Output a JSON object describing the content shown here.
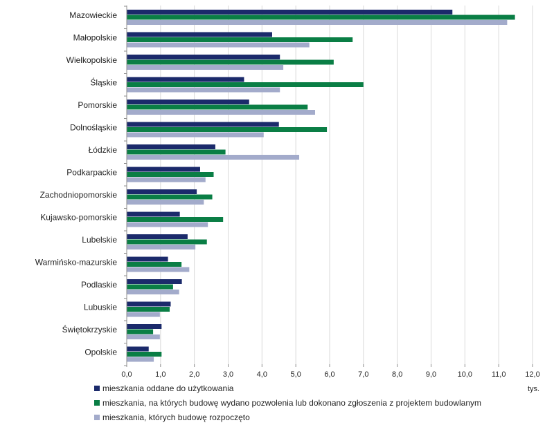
{
  "chart_data": {
    "type": "bar",
    "orientation": "horizontal",
    "categories": [
      "Mazowieckie",
      "Małopolskie",
      "Wielkopolskie",
      "Śląskie",
      "Pomorskie",
      "Dolnośląskie",
      "Łódzkie",
      "Podkarpackie",
      "Zachodniopomorskie",
      "Kujawsko-pomorskie",
      "Lubelskie",
      "Warmińsko-mazurskie",
      "Podlaskie",
      "Lubuskie",
      "Świętokrzyskie",
      "Opolskie"
    ],
    "series": [
      {
        "name": "mieszkania oddane do użytkowania",
        "color": "#1b2a6b",
        "values": [
          9.63,
          4.3,
          4.53,
          3.47,
          3.62,
          4.5,
          2.62,
          2.17,
          2.07,
          1.57,
          1.8,
          1.22,
          1.63,
          1.3,
          1.03,
          0.65
        ]
      },
      {
        "name": "mieszkania, na których budowę wydano pozwolenia lub dokonano zgłoszenia z projektem budowlanym",
        "color": "#0a7e45",
        "values": [
          11.48,
          6.68,
          6.12,
          7.0,
          5.35,
          5.92,
          2.92,
          2.57,
          2.53,
          2.85,
          2.37,
          1.62,
          1.37,
          1.27,
          0.78,
          1.03
        ]
      },
      {
        "name": "mieszkania, których budowę rozpoczęto",
        "color": "#a3abcb",
        "values": [
          11.25,
          5.4,
          4.63,
          4.53,
          5.57,
          4.05,
          5.1,
          2.33,
          2.28,
          2.4,
          2.03,
          1.85,
          1.55,
          0.98,
          0.98,
          0.8
        ]
      }
    ],
    "xlim": [
      0,
      12
    ],
    "ticks": [
      "0,0",
      "1,0",
      "2,0",
      "3,0",
      "4,0",
      "5,0",
      "6,0",
      "7,0",
      "8,0",
      "9,0",
      "10,0",
      "11,0",
      "12,0"
    ],
    "unit": "tys.",
    "grid": "vertical",
    "legend": "bottom-left"
  }
}
